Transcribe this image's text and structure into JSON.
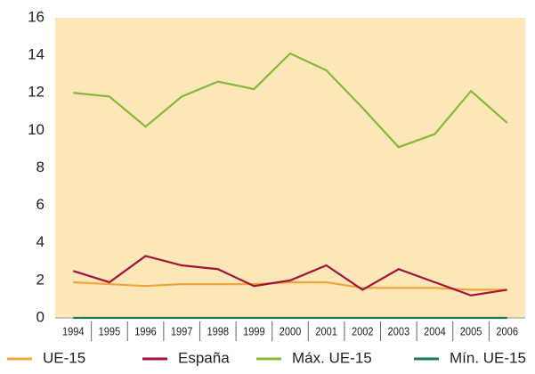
{
  "chart_data": {
    "type": "line",
    "categories": [
      "1994",
      "1995",
      "1996",
      "1997",
      "1998",
      "1999",
      "2000",
      "2001",
      "2002",
      "2003",
      "2004",
      "2005",
      "2006"
    ],
    "series": [
      {
        "name": "UE-15",
        "color": "#f2a33a",
        "values": [
          1.9,
          1.8,
          1.7,
          1.8,
          1.8,
          1.8,
          1.9,
          1.9,
          1.6,
          1.6,
          1.6,
          1.5,
          1.5
        ]
      },
      {
        "name": "España",
        "color": "#a3143c",
        "values": [
          2.5,
          1.9,
          3.3,
          2.8,
          2.6,
          1.7,
          2.0,
          2.8,
          1.5,
          2.6,
          1.9,
          1.2,
          1.5
        ]
      },
      {
        "name": "Máx. UE-15",
        "color": "#86b83a",
        "values": [
          12.0,
          11.8,
          10.2,
          11.8,
          12.6,
          12.2,
          14.1,
          13.2,
          11.2,
          9.1,
          9.8,
          12.1,
          10.4
        ]
      },
      {
        "name": "Mín. UE-15",
        "color": "#1b7a4c",
        "values": [
          0,
          0,
          0,
          0,
          0,
          0,
          0,
          0,
          0,
          0,
          0,
          0,
          0
        ]
      }
    ],
    "ylim": [
      0,
      16
    ],
    "yticks": [
      0,
      2,
      4,
      6,
      8,
      10,
      12,
      14,
      16
    ],
    "legend": "bottom",
    "background": "#fbe7b7"
  }
}
